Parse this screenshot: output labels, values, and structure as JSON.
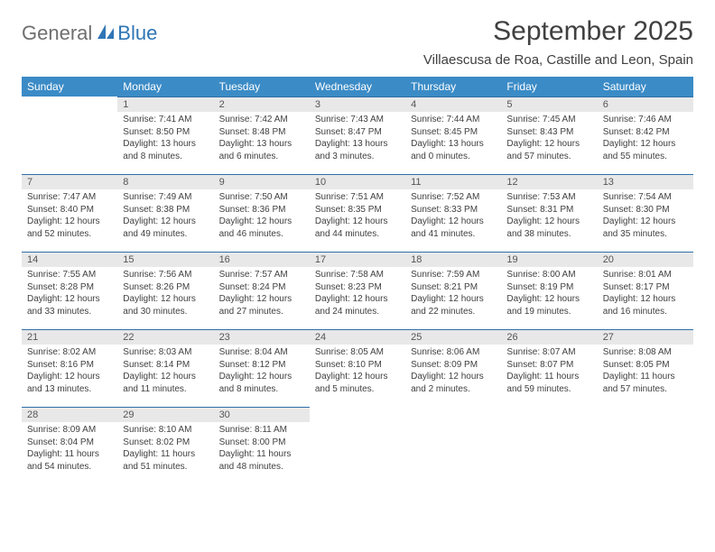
{
  "logo": {
    "general": "General",
    "blue": "Blue"
  },
  "title": "September 2025",
  "location": "Villaescusa de Roa, Castille and Leon, Spain",
  "colors": {
    "header_bg": "#3b8bc6",
    "header_text": "#ffffff",
    "daybar_bg": "#e8e8e8",
    "daybar_border": "#2f6fa8",
    "body_text": "#404040",
    "logo_gray": "#6f6f6f",
    "logo_blue": "#2f75b5"
  },
  "weekdays": [
    "Sunday",
    "Monday",
    "Tuesday",
    "Wednesday",
    "Thursday",
    "Friday",
    "Saturday"
  ],
  "weeks": [
    [
      null,
      {
        "n": "1",
        "sr": "7:41 AM",
        "ss": "8:50 PM",
        "dl": "13 hours and 8 minutes."
      },
      {
        "n": "2",
        "sr": "7:42 AM",
        "ss": "8:48 PM",
        "dl": "13 hours and 6 minutes."
      },
      {
        "n": "3",
        "sr": "7:43 AM",
        "ss": "8:47 PM",
        "dl": "13 hours and 3 minutes."
      },
      {
        "n": "4",
        "sr": "7:44 AM",
        "ss": "8:45 PM",
        "dl": "13 hours and 0 minutes."
      },
      {
        "n": "5",
        "sr": "7:45 AM",
        "ss": "8:43 PM",
        "dl": "12 hours and 57 minutes."
      },
      {
        "n": "6",
        "sr": "7:46 AM",
        "ss": "8:42 PM",
        "dl": "12 hours and 55 minutes."
      }
    ],
    [
      {
        "n": "7",
        "sr": "7:47 AM",
        "ss": "8:40 PM",
        "dl": "12 hours and 52 minutes."
      },
      {
        "n": "8",
        "sr": "7:49 AM",
        "ss": "8:38 PM",
        "dl": "12 hours and 49 minutes."
      },
      {
        "n": "9",
        "sr": "7:50 AM",
        "ss": "8:36 PM",
        "dl": "12 hours and 46 minutes."
      },
      {
        "n": "10",
        "sr": "7:51 AM",
        "ss": "8:35 PM",
        "dl": "12 hours and 44 minutes."
      },
      {
        "n": "11",
        "sr": "7:52 AM",
        "ss": "8:33 PM",
        "dl": "12 hours and 41 minutes."
      },
      {
        "n": "12",
        "sr": "7:53 AM",
        "ss": "8:31 PM",
        "dl": "12 hours and 38 minutes."
      },
      {
        "n": "13",
        "sr": "7:54 AM",
        "ss": "8:30 PM",
        "dl": "12 hours and 35 minutes."
      }
    ],
    [
      {
        "n": "14",
        "sr": "7:55 AM",
        "ss": "8:28 PM",
        "dl": "12 hours and 33 minutes."
      },
      {
        "n": "15",
        "sr": "7:56 AM",
        "ss": "8:26 PM",
        "dl": "12 hours and 30 minutes."
      },
      {
        "n": "16",
        "sr": "7:57 AM",
        "ss": "8:24 PM",
        "dl": "12 hours and 27 minutes."
      },
      {
        "n": "17",
        "sr": "7:58 AM",
        "ss": "8:23 PM",
        "dl": "12 hours and 24 minutes."
      },
      {
        "n": "18",
        "sr": "7:59 AM",
        "ss": "8:21 PM",
        "dl": "12 hours and 22 minutes."
      },
      {
        "n": "19",
        "sr": "8:00 AM",
        "ss": "8:19 PM",
        "dl": "12 hours and 19 minutes."
      },
      {
        "n": "20",
        "sr": "8:01 AM",
        "ss": "8:17 PM",
        "dl": "12 hours and 16 minutes."
      }
    ],
    [
      {
        "n": "21",
        "sr": "8:02 AM",
        "ss": "8:16 PM",
        "dl": "12 hours and 13 minutes."
      },
      {
        "n": "22",
        "sr": "8:03 AM",
        "ss": "8:14 PM",
        "dl": "12 hours and 11 minutes."
      },
      {
        "n": "23",
        "sr": "8:04 AM",
        "ss": "8:12 PM",
        "dl": "12 hours and 8 minutes."
      },
      {
        "n": "24",
        "sr": "8:05 AM",
        "ss": "8:10 PM",
        "dl": "12 hours and 5 minutes."
      },
      {
        "n": "25",
        "sr": "8:06 AM",
        "ss": "8:09 PM",
        "dl": "12 hours and 2 minutes."
      },
      {
        "n": "26",
        "sr": "8:07 AM",
        "ss": "8:07 PM",
        "dl": "11 hours and 59 minutes."
      },
      {
        "n": "27",
        "sr": "8:08 AM",
        "ss": "8:05 PM",
        "dl": "11 hours and 57 minutes."
      }
    ],
    [
      {
        "n": "28",
        "sr": "8:09 AM",
        "ss": "8:04 PM",
        "dl": "11 hours and 54 minutes."
      },
      {
        "n": "29",
        "sr": "8:10 AM",
        "ss": "8:02 PM",
        "dl": "11 hours and 51 minutes."
      },
      {
        "n": "30",
        "sr": "8:11 AM",
        "ss": "8:00 PM",
        "dl": "11 hours and 48 minutes."
      },
      null,
      null,
      null,
      null
    ]
  ],
  "labels": {
    "sunrise": "Sunrise:",
    "sunset": "Sunset:",
    "daylight": "Daylight:"
  }
}
